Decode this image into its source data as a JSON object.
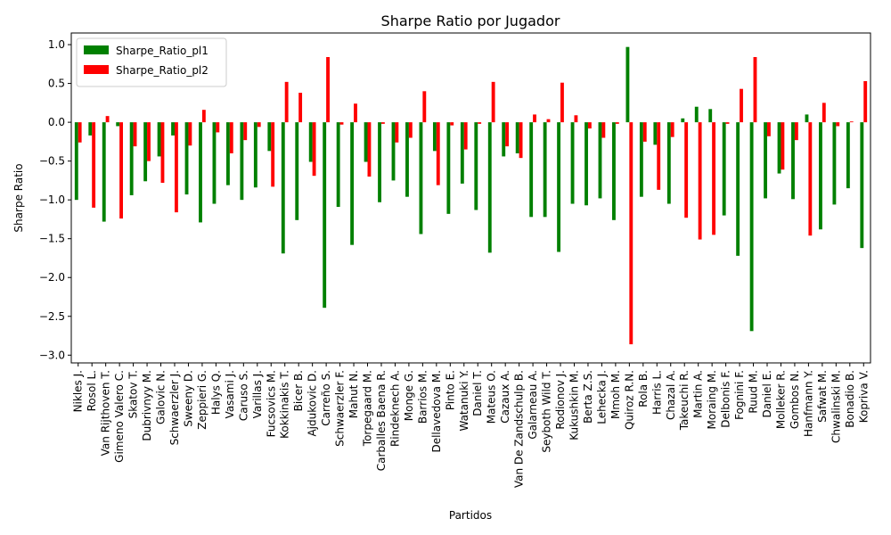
{
  "chart_data": {
    "type": "bar",
    "title": "Sharpe Ratio por Jugador",
    "xlabel": "Partidos",
    "ylabel": "Sharpe Ratio",
    "categories": [
      "Nikles J.",
      "Rosol L.",
      "Van Rijthoven T.",
      "Gimeno Valero C.",
      "Skatov T.",
      "Dubrivnyy M.",
      "Galovic N.",
      "Schwaerzler J.",
      "Sweeny D.",
      "Zeppieri G.",
      "Halys Q.",
      "Vasami J.",
      "Caruso S.",
      "Varillas J.",
      "Fucsovics M.",
      "Kokkinakis T.",
      "Bicer B.",
      "Ajdukovic D.",
      "Carreño S.",
      "Schwaerzler F.",
      "Mahut N.",
      "Torpegaard M.",
      "Carballes Baena R.",
      "Rindeknech A.",
      "Monge G.",
      "Barrios M.",
      "Dellavedova M.",
      "Pinto E.",
      "Watanuki Y.",
      "Daniel T.",
      "Mateus O.",
      "Cazaux A.",
      "Van De Zandschulp B.",
      "Galarneau A.",
      "Seyboth Wild T.",
      "Rodionov J.",
      "Kukushkin M.",
      "Berta Z.S.",
      "Lehecka J.",
      "Mmoh M.",
      "Quiroz R.N.",
      "Rola B.",
      "Harris L.",
      "Chazal A.",
      "Takeuchi R.",
      "Martin A.",
      "Moraing M.",
      "Delbonis F.",
      "Fognini F.",
      "Ruud M.",
      "Daniel E.",
      "Molleker R.",
      "Gombos N.",
      "Hanfmann Y.",
      "Safwat M.",
      "Chwalinski M.",
      "Bonadio B.",
      "Kopriva V."
    ],
    "series": [
      {
        "name": "Sharpe_Ratio_pl1",
        "color": "#008000",
        "values": [
          -1.0,
          -0.17,
          -1.28,
          -0.05,
          -0.94,
          -0.76,
          -0.44,
          -0.17,
          -0.93,
          -1.29,
          -1.05,
          -0.81,
          -1.0,
          -0.84,
          -0.37,
          -1.69,
          -1.26,
          -0.51,
          -2.39,
          -1.09,
          -1.58,
          -0.51,
          -1.03,
          -0.75,
          -0.96,
          -1.44,
          -0.37,
          -1.18,
          -0.79,
          -1.13,
          -1.68,
          -0.44,
          -0.4,
          -1.22,
          -1.22,
          -1.67,
          -1.05,
          -1.07,
          -0.98,
          -1.26,
          0.97,
          -0.96,
          -0.29,
          -1.05,
          0.05,
          0.2,
          0.17,
          -1.2,
          -1.72,
          -2.69,
          -0.98,
          -0.66,
          -0.99,
          0.1,
          -1.38,
          -1.06,
          -0.85,
          -1.62
        ]
      },
      {
        "name": "Sharpe_Ratio_pl2",
        "color": "#ff0000",
        "values": [
          -0.26,
          -1.1,
          0.08,
          -1.24,
          -0.31,
          -0.5,
          -0.78,
          -1.16,
          -0.3,
          0.16,
          -0.13,
          -0.4,
          -0.23,
          -0.06,
          -0.83,
          0.52,
          0.38,
          -0.69,
          0.84,
          -0.03,
          0.24,
          -0.7,
          -0.02,
          -0.26,
          -0.2,
          0.4,
          -0.81,
          -0.04,
          -0.35,
          -0.02,
          0.52,
          -0.31,
          -0.46,
          0.1,
          0.04,
          0.51,
          0.09,
          -0.08,
          -0.2,
          -0.02,
          -2.86,
          -0.25,
          -0.87,
          -0.19,
          -1.23,
          -1.51,
          -1.45,
          -0.02,
          0.43,
          0.84,
          -0.18,
          -0.61,
          -0.23,
          -1.46,
          0.25,
          -0.05,
          0.01,
          0.53
        ]
      }
    ],
    "ylim": [
      -3.1,
      1.15
    ],
    "yticks": [
      {
        "value": 1.0,
        "label": "1.0"
      },
      {
        "value": 0.5,
        "label": "0.5"
      },
      {
        "value": 0.0,
        "label": "0.0"
      },
      {
        "value": -0.5,
        "label": "−0.5"
      },
      {
        "value": -1.0,
        "label": "−1.0"
      },
      {
        "value": -1.5,
        "label": "−1.5"
      },
      {
        "value": -2.0,
        "label": "−2.0"
      },
      {
        "value": -2.5,
        "label": "−2.5"
      },
      {
        "value": -3.0,
        "label": "−3.0"
      }
    ],
    "legend": "upper left"
  }
}
